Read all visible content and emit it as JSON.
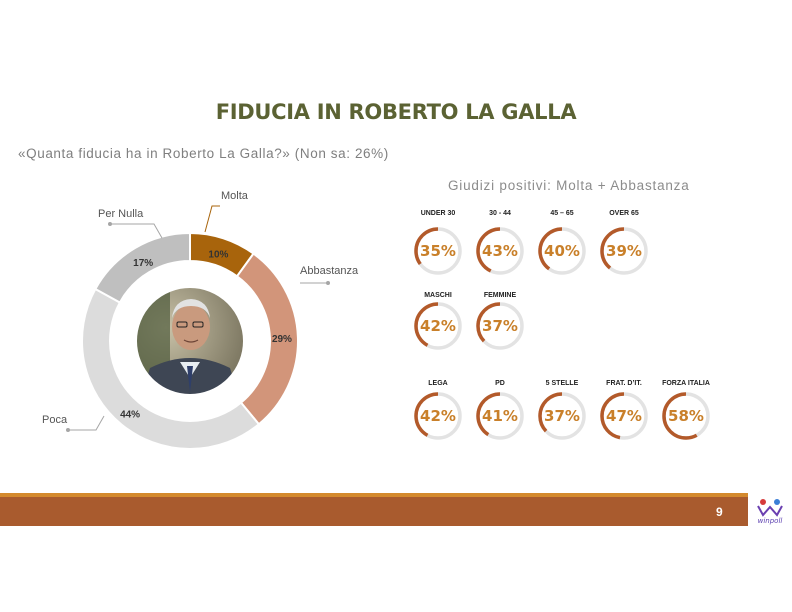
{
  "title": "FIDUCIA IN ROBERTO LA GALLA",
  "subtitle": "«Quanta fiducia ha in Roberto La Galla?» (Non sa: 26%)",
  "page_number": "9",
  "logo_text": "winpoll",
  "colors": {
    "title": "#5b6233",
    "accent": "#b35a2a",
    "molta": "#a8640c",
    "abbastanza": "#d2957a",
    "poca": "#dcdcdc",
    "per_nulla": "#bfbfbf",
    "footer": "#a95b2e",
    "ring_value": "#c9802a"
  },
  "chart_data": [
    {
      "type": "pie",
      "variant": "donut",
      "categories": [
        "Molta",
        "Abbastanza",
        "Poca",
        "Per Nulla"
      ],
      "values": [
        10,
        29,
        44,
        17
      ],
      "value_labels": [
        "10%",
        "29%",
        "44%",
        "17%"
      ],
      "center_image": "portrait of Roberto La Galla"
    },
    {
      "type": "bar",
      "variant": "progress-rings",
      "title": "Giudizi positivi: Molta + Abbastanza",
      "groups": [
        {
          "items": [
            {
              "label": "UNDER 30",
              "value": 35,
              "value_label": "35%"
            },
            {
              "label": "30 - 44",
              "value": 43,
              "value_label": "43%"
            },
            {
              "label": "45 – 65",
              "value": 40,
              "value_label": "40%"
            },
            {
              "label": "OVER 65",
              "value": 39,
              "value_label": "39%"
            }
          ]
        },
        {
          "items": [
            {
              "label": "MASCHI",
              "value": 42,
              "value_label": "42%"
            },
            {
              "label": "FEMMINE",
              "value": 37,
              "value_label": "37%"
            }
          ]
        },
        {
          "items": [
            {
              "label": "LEGA",
              "value": 42,
              "value_label": "42%"
            },
            {
              "label": "PD",
              "value": 41,
              "value_label": "41%"
            },
            {
              "label": "5 STELLE",
              "value": 37,
              "value_label": "37%"
            },
            {
              "label": "FRAT. D’IT.",
              "value": 47,
              "value_label": "47%"
            },
            {
              "label": "FORZA ITALIA",
              "value": 58,
              "value_label": "58%"
            }
          ]
        }
      ]
    }
  ]
}
